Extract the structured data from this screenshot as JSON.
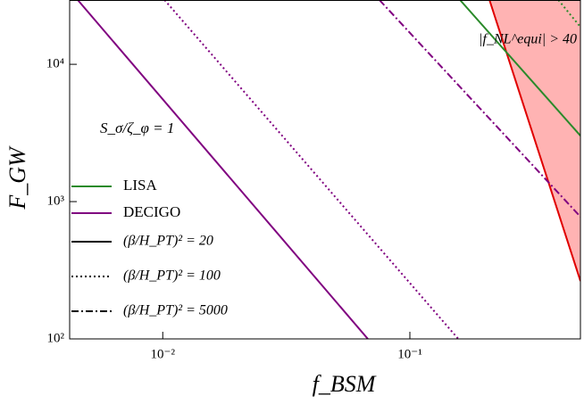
{
  "chart_data": {
    "type": "line",
    "xlabel": "f_BSM",
    "ylabel": "F_GW",
    "xlog": true,
    "ylog": true,
    "xlim": [
      0.0042,
      0.49
    ],
    "ylim": [
      100,
      29400
    ],
    "xticks": [
      {
        "value": 0.01,
        "label": "10⁻²"
      },
      {
        "value": 0.1,
        "label": "10⁻¹"
      }
    ],
    "yticks": [
      {
        "value": 100,
        "label": "10²"
      },
      {
        "value": 1000,
        "label": "10³"
      },
      {
        "value": 10000,
        "label": "10⁴"
      }
    ],
    "annotation": "S_σ/ζ_φ = 1",
    "legend": {
      "colors": [
        {
          "label": "LISA",
          "color": "#2a8a2a"
        },
        {
          "label": "DECIGO",
          "color": "#800080"
        }
      ],
      "styles": [
        {
          "label": "(β/H_PT)² = 20",
          "dash": "solid"
        },
        {
          "label": "(β/H_PT)² = 100",
          "dash": "dotted"
        },
        {
          "label": "(β/H_PT)² = 5000",
          "dash": "dashdot"
        }
      ]
    },
    "series": [
      {
        "color": "#800080",
        "dash": "solid",
        "x": [
          0.00453,
          0.0676
        ],
        "values": [
          29400,
          100
        ]
      },
      {
        "color": "#800080",
        "dash": "dotted",
        "x": [
          0.01017,
          0.157
        ],
        "values": [
          29400,
          100
        ]
      },
      {
        "color": "#800080",
        "dash": "dashdot",
        "x": [
          0.0753,
          0.49
        ],
        "values": [
          29400,
          776
        ]
      },
      {
        "color": "#2a8a2a",
        "dash": "solid",
        "x": [
          0.1596,
          0.49
        ],
        "values": [
          29400,
          3020
        ]
      },
      {
        "color": "#2a8a2a",
        "dash": "dotted",
        "x": [
          0.399,
          0.49
        ],
        "values": [
          29400,
          18700
        ]
      }
    ],
    "region": {
      "label": "|f_NL^equi| > 40",
      "fill": "#ffb3b3",
      "edge": "#e00000",
      "x": [
        0.21,
        0.49,
        0.49
      ],
      "values": [
        29400,
        264,
        29400
      ]
    }
  }
}
